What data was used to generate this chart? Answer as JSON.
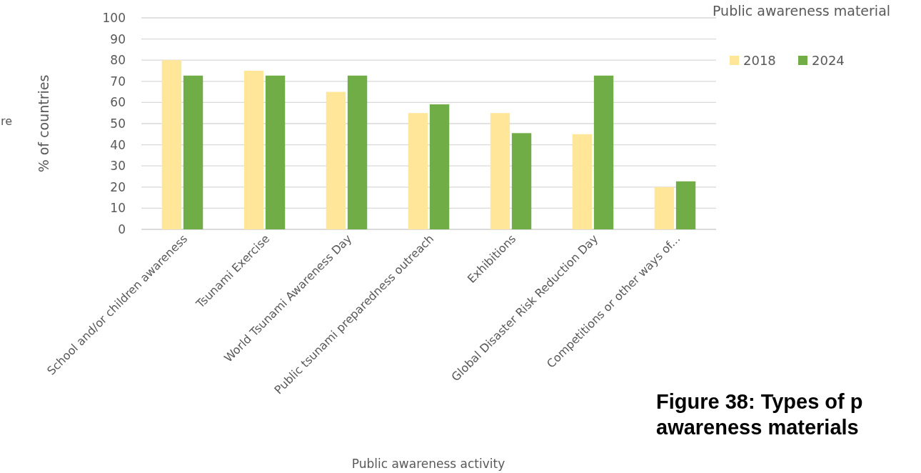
{
  "chart_data": {
    "type": "bar",
    "title": "Public awareness material",
    "xlabel": "Public awareness activity",
    "ylabel": "% of countries",
    "categories": [
      "School and/or children awareness",
      "Tsunami Exercise",
      "World Tsunami Awareness Day",
      "Public tsunami preparedness outreach",
      "Exhibitions",
      "Global Disaster Risk Reduction Day",
      "Competitions or other ways of..."
    ],
    "series": [
      {
        "name": "2018",
        "color": "#ffe699",
        "values": [
          80,
          75,
          65,
          55,
          55,
          45,
          20
        ]
      },
      {
        "name": "2024",
        "color": "#70ad47",
        "values": [
          72.7,
          72.7,
          72.7,
          59.1,
          45.5,
          72.7,
          22.7
        ]
      }
    ],
    "ylim": [
      0,
      100
    ],
    "yticks": [
      0,
      10,
      20,
      30,
      40,
      50,
      60,
      70,
      80,
      90,
      100
    ],
    "grid": "y",
    "legend": "top right",
    "annotations": [
      "re",
      "Figure 38: Types of p",
      "awareness materials"
    ]
  }
}
